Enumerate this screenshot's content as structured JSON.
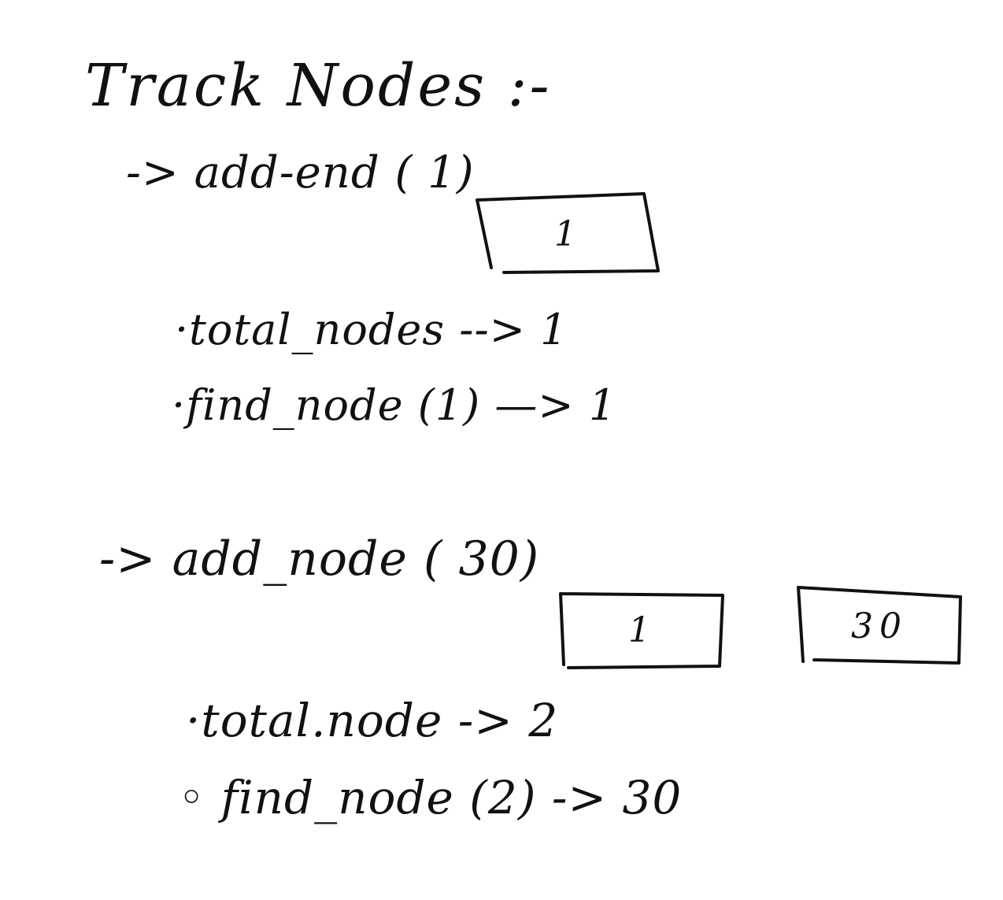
{
  "title": "Track Nodes :-",
  "step1": {
    "operation": "-> add-end ( 1)",
    "nodes": [
      "1"
    ],
    "total_nodes_line": "·total_nodes --> 1",
    "find_node_line": "·find_node (1) —> 1"
  },
  "step2": {
    "operation": "-> add_node ( 30)",
    "nodes": [
      "1",
      "30"
    ],
    "total_node_line": "·total.node -> 2",
    "find_node_line": "◦ find_node (2) -> 30"
  }
}
